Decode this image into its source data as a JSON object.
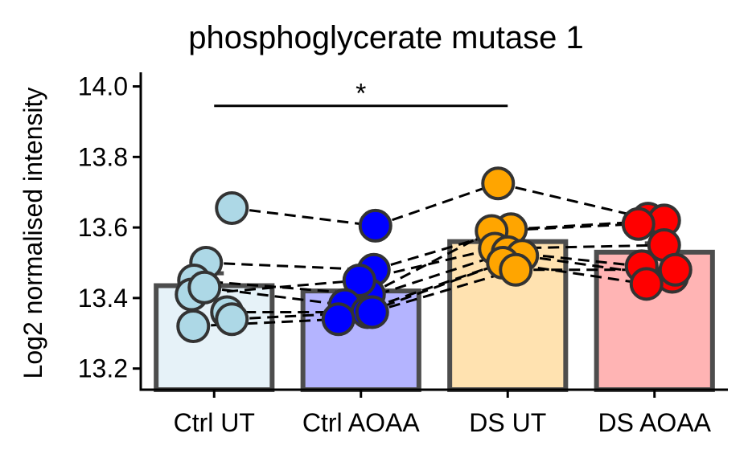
{
  "chart_data": {
    "type": "bar",
    "title": "phosphoglycerate mutase 1",
    "xlabel": "",
    "ylabel": "Log2 normalised intensity",
    "ylim": [
      13.14,
      14.04
    ],
    "yticks": [
      13.2,
      13.4,
      13.6,
      13.8,
      14.0
    ],
    "ytick_labels": [
      "13.2",
      "13.4",
      "13.6",
      "13.8",
      "14.0"
    ],
    "categories": [
      "Ctrl UT",
      "Ctrl AOAA",
      "DS UT",
      "DS AOAA"
    ],
    "values": [
      13.435,
      13.42,
      13.56,
      13.53
    ],
    "error_upper": [
      13.47,
      13.455,
      13.585,
      13.555
    ],
    "bar_colors": [
      "#e6f2f8",
      "#b4b4ff",
      "#ffe2b0",
      "#ffb4b4"
    ],
    "point_colors": [
      "#add8e6",
      "#0000ff",
      "#ffa500",
      "#ff0000"
    ],
    "points": [
      [
        13.655,
        13.5,
        13.45,
        13.41,
        13.43,
        13.36,
        13.32,
        13.34
      ],
      [
        13.605,
        13.48,
        13.41,
        13.45,
        13.38,
        13.36,
        13.34,
        13.36
      ],
      [
        13.725,
        13.595,
        13.59,
        13.54,
        13.53,
        13.52,
        13.5,
        13.48
      ],
      [
        13.625,
        13.62,
        13.61,
        13.55,
        13.49,
        13.46,
        13.44,
        13.48
      ]
    ],
    "significance": {
      "from": "Ctrl UT",
      "to": "DS UT",
      "label": "*",
      "y": 13.945
    },
    "grid": false,
    "legend": "none"
  }
}
